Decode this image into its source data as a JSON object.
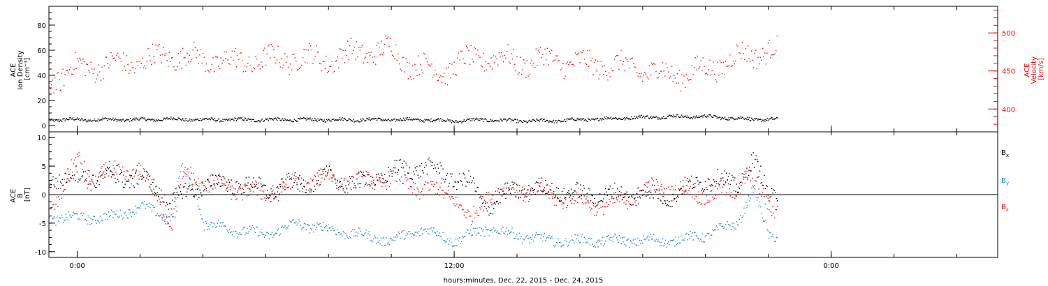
{
  "colors": {
    "black": "#000000",
    "red": "#ff0000",
    "blue": "#1a84d4"
  },
  "xaxis": {
    "label": "hours:minutes, Dec. 22, 2015 - Dec. 24, 2015",
    "tick_labels": [
      {
        "t": 0,
        "label": "0:00"
      },
      {
        "t": 12,
        "label": "12:00"
      },
      {
        "t": 24,
        "label": "0:00"
      }
    ],
    "range_hours": [
      -0.9,
      29.3
    ],
    "data_end_hours": 22.3
  },
  "chart_data": [
    {
      "type": "scatter",
      "panel": "top",
      "left_axis": {
        "title_lines": [
          "ACE",
          "Ion Density",
          "[cm⁻³]"
        ],
        "range": [
          -5,
          95
        ],
        "ticks": [
          0,
          20,
          40,
          60,
          80
        ],
        "color": "#000000"
      },
      "right_axis": {
        "title_lines": [
          "ACE",
          "Velocity",
          "[km/s]"
        ],
        "range": [
          370,
          535
        ],
        "ticks": [
          400,
          450,
          500
        ],
        "color": "#ff0000"
      },
      "series": [
        {
          "axis": "left",
          "color": "black",
          "points": [
            [
              -0.9,
              5
            ],
            [
              0,
              5
            ],
            [
              1,
              5
            ],
            [
              2,
              5
            ],
            [
              3,
              5.5
            ],
            [
              4,
              5
            ],
            [
              5,
              5
            ],
            [
              6,
              5
            ],
            [
              7,
              5
            ],
            [
              8,
              5
            ],
            [
              9,
              5
            ],
            [
              10,
              5
            ],
            [
              11,
              5
            ],
            [
              12,
              4
            ],
            [
              13,
              5
            ],
            [
              14,
              4
            ],
            [
              15,
              4
            ],
            [
              16,
              5
            ],
            [
              17,
              6
            ],
            [
              18,
              7
            ],
            [
              19,
              7.5
            ],
            [
              20,
              7.5
            ],
            [
              21,
              6
            ],
            [
              22,
              5
            ],
            [
              22.3,
              5
            ]
          ]
        },
        {
          "axis": "right",
          "color": "red",
          "points": [
            [
              -0.9,
              440
            ],
            [
              -0.5,
              445
            ],
            [
              0,
              455
            ],
            [
              1,
              458
            ],
            [
              2,
              462
            ],
            [
              3,
              472
            ],
            [
              4,
              465
            ],
            [
              5,
              462
            ],
            [
              6,
              465
            ],
            [
              7,
              468
            ],
            [
              8,
              465
            ],
            [
              9,
              475
            ],
            [
              10,
              478
            ],
            [
              10.5,
              462
            ],
            [
              11,
              455
            ],
            [
              11.5,
              448
            ],
            [
              12,
              458
            ],
            [
              13,
              470
            ],
            [
              14,
              462
            ],
            [
              15,
              465
            ],
            [
              16,
              460
            ],
            [
              17,
              458
            ],
            [
              18,
              452
            ],
            [
              19,
              445
            ],
            [
              20,
              452
            ],
            [
              21,
              468
            ],
            [
              22,
              478
            ],
            [
              22.3,
              475
            ]
          ]
        }
      ]
    },
    {
      "type": "scatter",
      "panel": "bottom",
      "left_axis": {
        "title_lines": [
          "ACE",
          "B",
          "[nT]"
        ],
        "range": [
          -11,
          11
        ],
        "ticks": [
          -10,
          -5,
          0,
          5,
          10
        ],
        "color": "#000000"
      },
      "legend": [
        {
          "name": "Bx",
          "base": "B",
          "sub": "x",
          "color": "black"
        },
        {
          "name": "By",
          "base": "B",
          "sub": "y",
          "color": "blue"
        },
        {
          "name": "Bz",
          "base": "B",
          "sub": "z",
          "color": "red"
        }
      ],
      "zero_line": true,
      "series": [
        {
          "name": "Bx",
          "color": "black",
          "points": [
            [
              -0.9,
              3
            ],
            [
              0,
              3
            ],
            [
              1,
              3
            ],
            [
              2,
              3
            ],
            [
              3,
              -1
            ],
            [
              4,
              2
            ],
            [
              5,
              2
            ],
            [
              6,
              1
            ],
            [
              7,
              2
            ],
            [
              8,
              3
            ],
            [
              9,
              2
            ],
            [
              10,
              4
            ],
            [
              11,
              5
            ],
            [
              12,
              3
            ],
            [
              12.5,
              2
            ],
            [
              13,
              -2
            ],
            [
              14,
              1
            ],
            [
              15,
              1
            ],
            [
              16,
              0
            ],
            [
              17,
              0
            ],
            [
              18,
              0
            ],
            [
              19,
              0
            ],
            [
              20,
              3
            ],
            [
              21,
              2
            ],
            [
              21.5,
              6
            ],
            [
              22,
              0
            ],
            [
              22.3,
              1
            ]
          ]
        },
        {
          "name": "By",
          "color": "blue",
          "points": [
            [
              -0.9,
              -4
            ],
            [
              0,
              -4
            ],
            [
              1,
              -4
            ],
            [
              2,
              -2
            ],
            [
              3,
              -4
            ],
            [
              3.3,
              5
            ],
            [
              3.8,
              0
            ],
            [
              4,
              -5
            ],
            [
              5,
              -6
            ],
            [
              6,
              -7
            ],
            [
              7,
              -5
            ],
            [
              8,
              -6
            ],
            [
              9,
              -7
            ],
            [
              10,
              -8
            ],
            [
              11,
              -6
            ],
            [
              12,
              -8
            ],
            [
              13,
              -6
            ],
            [
              14,
              -7
            ],
            [
              15,
              -8
            ],
            [
              16,
              -8
            ],
            [
              17,
              -8
            ],
            [
              18,
              -8
            ],
            [
              19,
              -8
            ],
            [
              20,
              -7
            ],
            [
              21,
              -5
            ],
            [
              21.5,
              1
            ],
            [
              22,
              -7
            ],
            [
              22.3,
              -7
            ]
          ]
        },
        {
          "name": "Bz",
          "color": "red",
          "points": [
            [
              -0.9,
              -3
            ],
            [
              0,
              6
            ],
            [
              0.5,
              3
            ],
            [
              1,
              4
            ],
            [
              2,
              4
            ],
            [
              2.5,
              0
            ],
            [
              3,
              -5
            ],
            [
              3.5,
              4
            ],
            [
              4,
              2
            ],
            [
              5,
              1
            ],
            [
              6,
              0
            ],
            [
              7,
              2
            ],
            [
              8,
              3
            ],
            [
              9,
              2
            ],
            [
              10,
              3
            ],
            [
              11,
              1
            ],
            [
              12,
              0
            ],
            [
              12.5,
              -5
            ],
            [
              13,
              0
            ],
            [
              14,
              1
            ],
            [
              15,
              0
            ],
            [
              16,
              -1
            ],
            [
              17,
              -2
            ],
            [
              18,
              1
            ],
            [
              19,
              1
            ],
            [
              20,
              0
            ],
            [
              21,
              1
            ],
            [
              21.3,
              4
            ],
            [
              22,
              -2
            ],
            [
              22.3,
              -2
            ]
          ]
        }
      ]
    }
  ]
}
